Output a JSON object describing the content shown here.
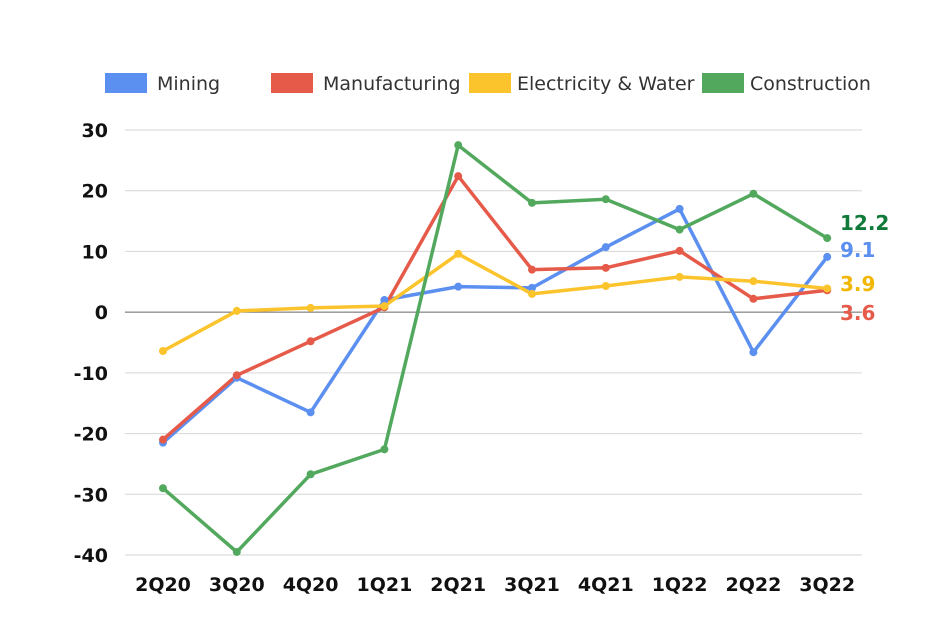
{
  "chart_data": {
    "type": "line",
    "title": "",
    "xlabel": "",
    "ylabel": "",
    "categories": [
      "2Q20",
      "3Q20",
      "4Q20",
      "1Q21",
      "2Q21",
      "3Q21",
      "4Q21",
      "1Q22",
      "2Q22",
      "3Q22"
    ],
    "ylim": [
      -40,
      30
    ],
    "yticks": [
      30,
      20,
      10,
      0,
      -10,
      -20,
      -30,
      -40
    ],
    "grid": true,
    "legend_position": "top",
    "series": [
      {
        "name": "Mining",
        "color": "#5b8ff0",
        "values": [
          -21.5,
          -10.8,
          -16.5,
          2.0,
          4.2,
          4.0,
          10.7,
          17.0,
          -6.6,
          9.1
        ],
        "end_label": "9.1",
        "end_label_color": "#5b8ff0"
      },
      {
        "name": "Manufacturing",
        "color": "#e65a4a",
        "values": [
          -21.0,
          -10.4,
          -4.8,
          0.8,
          22.4,
          7.0,
          7.3,
          10.1,
          2.2,
          3.6
        ],
        "end_label": "3.6",
        "end_label_color": "#e65a4a"
      },
      {
        "name": "Electricity & Water",
        "color": "#fcc42c",
        "values": [
          -6.4,
          0.2,
          0.7,
          1.0,
          9.6,
          3.0,
          4.3,
          5.8,
          5.1,
          3.9
        ],
        "end_label": "3.9",
        "end_label_color": "#f2b705"
      },
      {
        "name": "Construction",
        "color": "#52a95e",
        "values": [
          -29.0,
          -39.5,
          -26.7,
          -22.6,
          27.5,
          18.0,
          18.6,
          13.6,
          19.5,
          12.2
        ],
        "end_label": "12.2",
        "end_label_color": "#0f7a3a"
      }
    ]
  }
}
